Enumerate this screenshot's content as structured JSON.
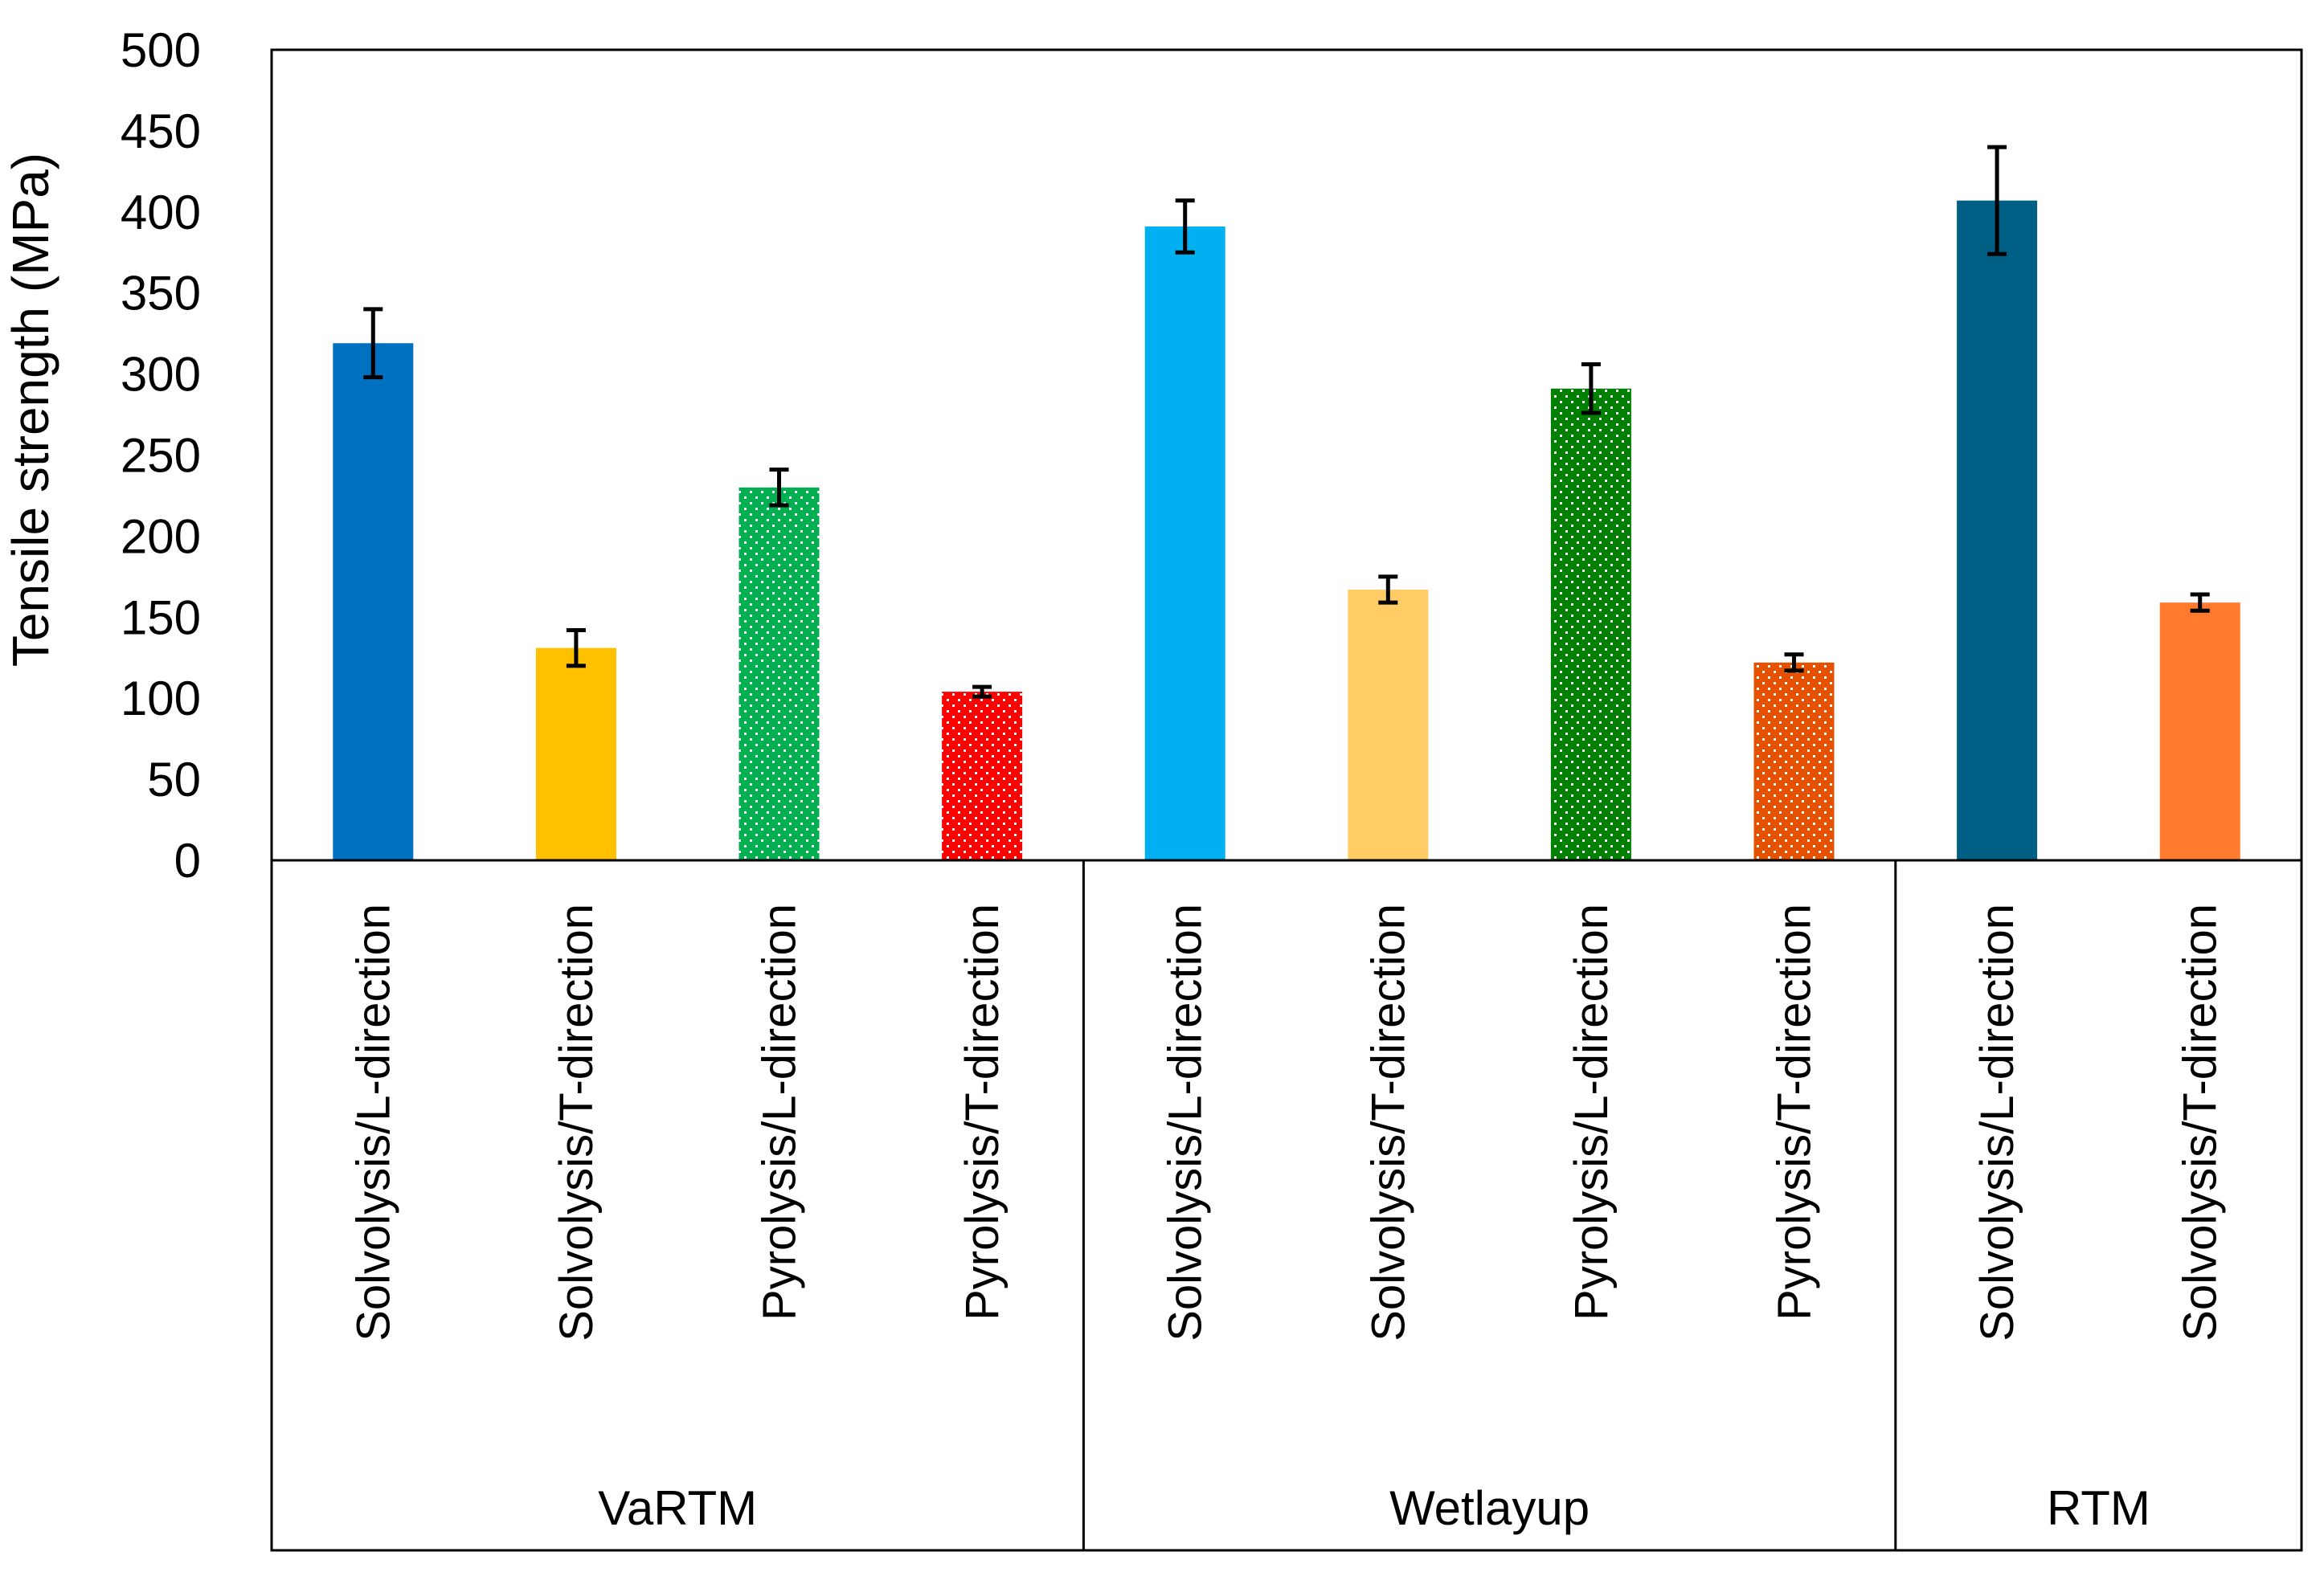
{
  "chart_data": {
    "type": "bar",
    "title": "",
    "xlabel": "",
    "ylabel": "Tensile strength (MPa)",
    "ylim": [
      0,
      500
    ],
    "yticks": [
      0,
      50,
      100,
      150,
      200,
      250,
      300,
      350,
      400,
      450,
      500
    ],
    "grid": false,
    "legend": "none",
    "groups": [
      {
        "label": "VaRTM",
        "start": 0,
        "count": 4
      },
      {
        "label": "Wetlayup",
        "start": 4,
        "count": 4
      },
      {
        "label": "RTM",
        "start": 8,
        "count": 2
      }
    ],
    "categories": [
      "Solvolysis/L-direction",
      "Solvolysis/T-direction",
      "Pyrolysis/L-direction",
      "Pyrolysis/T-direction",
      "Solvolysis/L-direction",
      "Solvolysis/T-direction",
      "Pyrolysis/L-direction",
      "Pyrolysis/T-direction",
      "Solvolysis/L-direction",
      "Solvolysis/T-direction"
    ],
    "values": [
      319,
      131,
      230,
      104,
      391,
      167,
      291,
      122,
      407,
      159
    ],
    "errors": [
      21,
      11,
      11,
      3,
      16,
      8,
      15,
      5,
      33,
      5
    ],
    "colors": [
      "#0070c0",
      "#ffc000",
      "#00b050",
      "#ff0000",
      "#00b0f0",
      "#ffcc66",
      "#008000",
      "#e65100",
      "#005f85",
      "#ff7a2e"
    ],
    "patterns": [
      "solid",
      "solid",
      "dotted",
      "dotted",
      "solid",
      "solid",
      "dotted",
      "dotted",
      "solid",
      "solid"
    ]
  }
}
